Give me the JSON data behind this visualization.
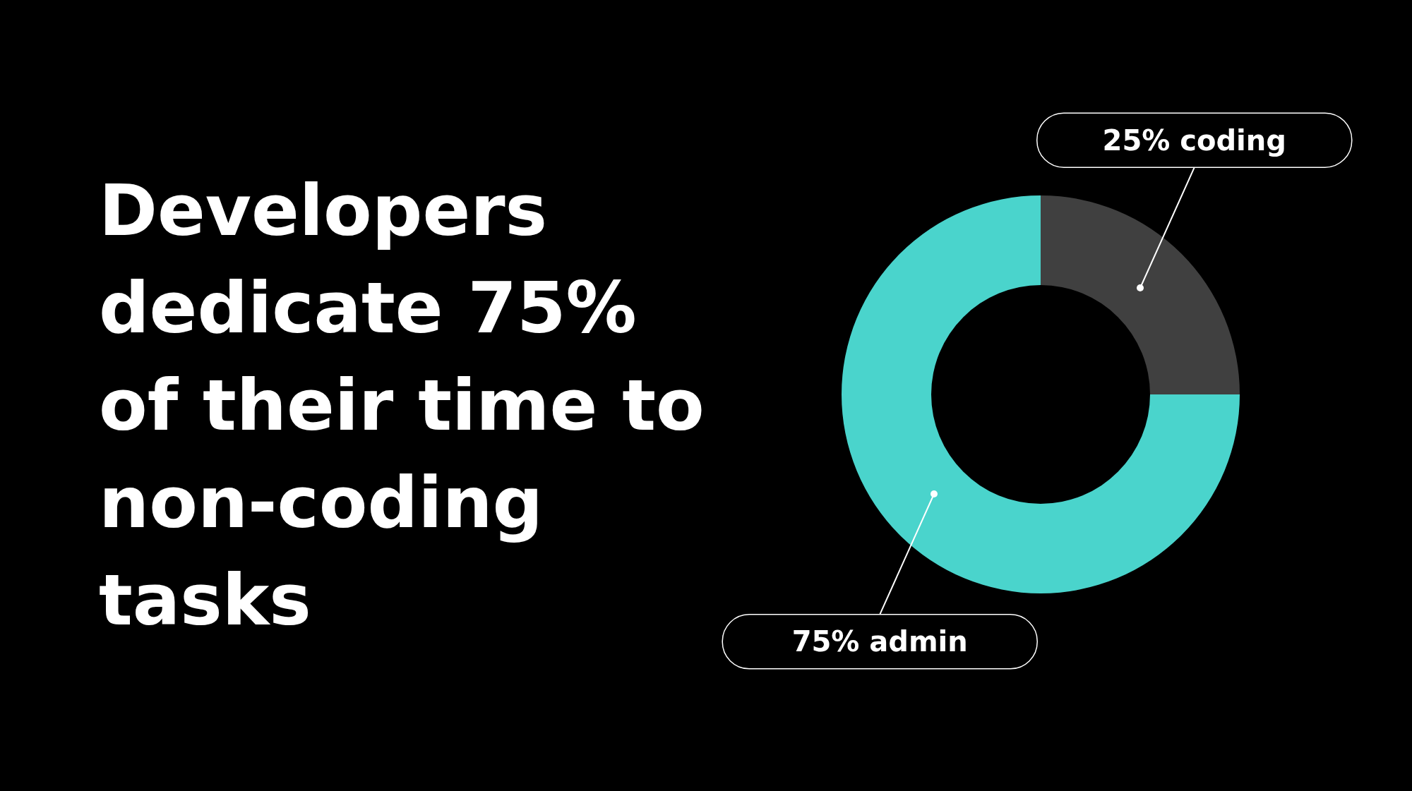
{
  "chart_data": {
    "type": "donut",
    "title": "Developers dedicate 75% of their time to non-coding tasks",
    "categories": [
      "25% coding",
      "75% admin"
    ],
    "values": [
      25,
      75
    ],
    "colors": [
      "#404040",
      "#4ad4cc"
    ],
    "legend": false
  }
}
